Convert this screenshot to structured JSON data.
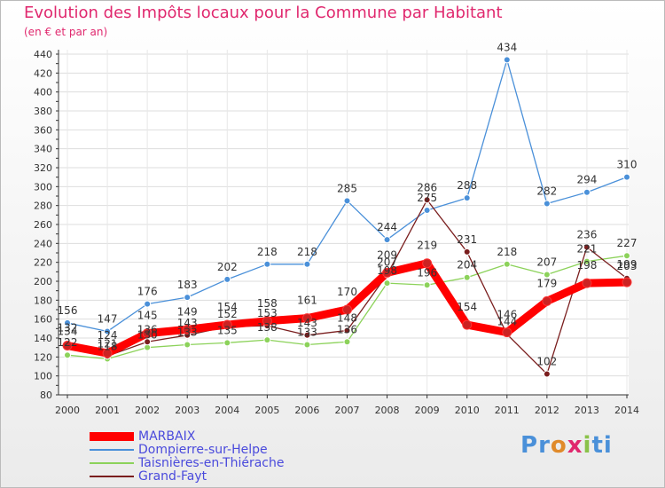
{
  "header": {
    "title": "Evolution des Impôts locaux pour la Commune par Habitant",
    "subtitle": "(en € et par an)"
  },
  "brand": {
    "letters": [
      "P",
      "r",
      "o",
      "x",
      "i",
      "t",
      "i"
    ],
    "colors": [
      "#4a90d9",
      "#4a90d9",
      "#e08a2a",
      "#e0286e",
      "#8ac24a",
      "#4a90d9",
      "#4a90d9"
    ]
  },
  "chart_data": {
    "type": "line",
    "title": "Evolution des Impôts locaux pour la Commune par Habitant",
    "ylabel": "(en € et par an)",
    "xlabel": "",
    "ylim": [
      80,
      440
    ],
    "yticks": [
      80,
      100,
      120,
      140,
      160,
      180,
      200,
      220,
      240,
      260,
      280,
      300,
      320,
      340,
      360,
      380,
      400,
      420,
      440
    ],
    "categories": [
      "2000",
      "2001",
      "2002",
      "2003",
      "2004",
      "2005",
      "2006",
      "2007",
      "2008",
      "2009",
      "2010",
      "2011",
      "2012",
      "2013",
      "2014"
    ],
    "grid": true,
    "legend": "bottom-left",
    "series": [
      {
        "name": "MARBAIX",
        "color": "#ff0000",
        "values": [
          132,
          124,
          145,
          149,
          154,
          158,
          161,
          170,
          209,
          219,
          154,
          146,
          179,
          198,
          199
        ]
      },
      {
        "name": "Dompierre-sur-Helpe",
        "color": "#4a90d9",
        "values": [
          156,
          147,
          176,
          183,
          202,
          218,
          218,
          285,
          244,
          275,
          288,
          434,
          282,
          294,
          310
        ]
      },
      {
        "name": "Taisnières-en-Thiérache",
        "color": "#8cd25a",
        "values": [
          122,
          118,
          130,
          133,
          135,
          138,
          133,
          136,
          198,
          196,
          204,
          218,
          207,
          221,
          227
        ]
      },
      {
        "name": "Grand-Fayt",
        "color": "#7a1e1e",
        "values": [
          134,
          121,
          136,
          143,
          152,
          153,
          143,
          148,
          207,
          286,
          231,
          144,
          102,
          236,
          203
        ]
      }
    ]
  }
}
